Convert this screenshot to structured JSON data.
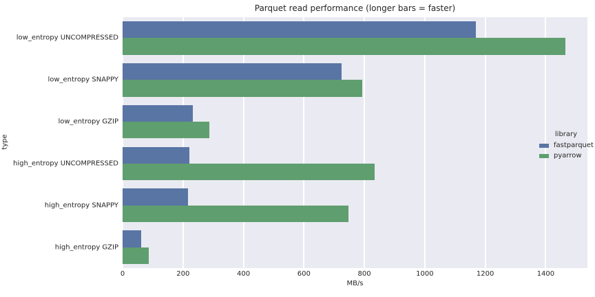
{
  "chart_data": {
    "type": "bar",
    "orientation": "horizontal",
    "title": "Parquet read performance (longer bars = faster)",
    "xlabel": "MB/s",
    "ylabel": "type",
    "categories": [
      "low_entropy UNCOMPRESSED",
      "low_entropy SNAPPY",
      "low_entropy GZIP",
      "high_entropy UNCOMPRESSED",
      "high_entropy SNAPPY",
      "high_entropy GZIP"
    ],
    "series": [
      {
        "name": "fastparquet",
        "color": "#5875a4",
        "values": [
          1170,
          725,
          232,
          222,
          216,
          61
        ]
      },
      {
        "name": "pyarrow",
        "color": "#5f9e6e",
        "values": [
          1465,
          793,
          287,
          833,
          748,
          86
        ]
      }
    ],
    "x_ticks": [
      0,
      200,
      400,
      600,
      800,
      1000,
      1200,
      1400
    ],
    "xlim": [
      0,
      1538
    ],
    "legend": {
      "title": "library",
      "position": "center-right"
    },
    "grid": true,
    "colors": {
      "plot_background": "#eaeaf2",
      "gridline": "#ffffff",
      "text": "#262626"
    }
  }
}
